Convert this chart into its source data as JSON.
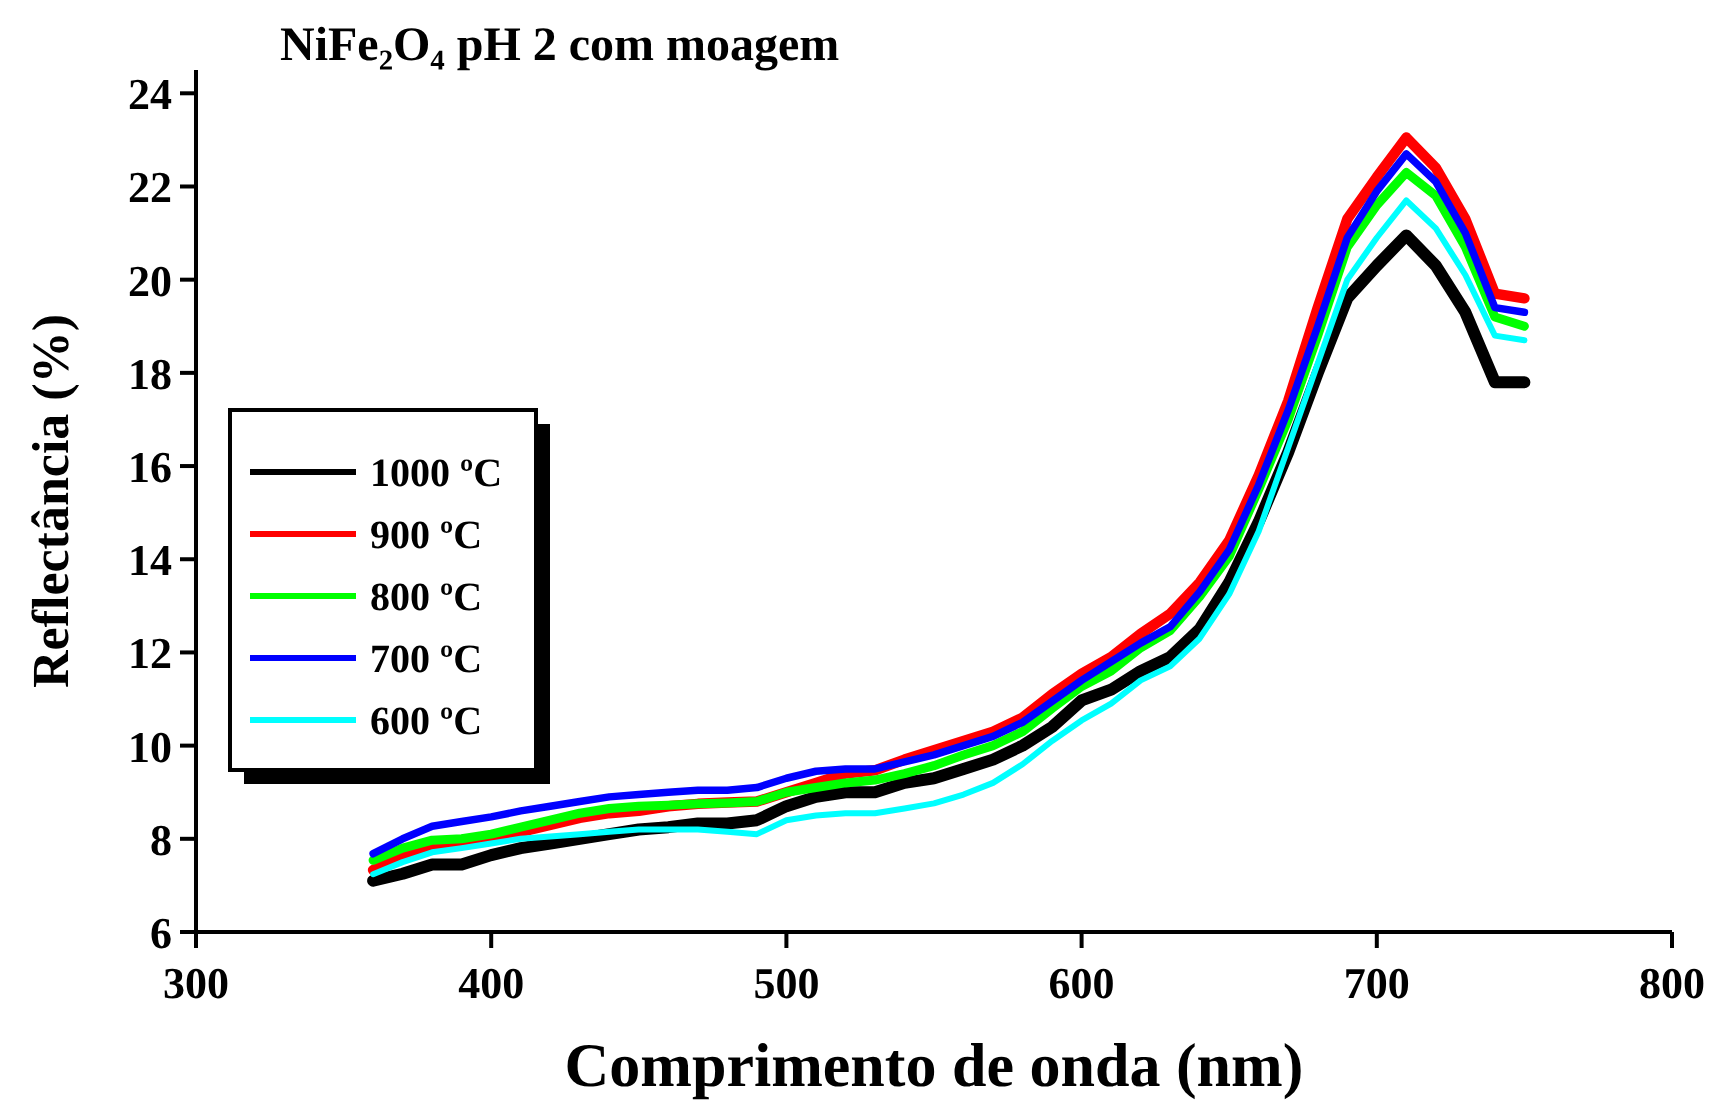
{
  "chart_data": {
    "type": "line",
    "title": "NiFe₂O₄ pH 2 com moagem",
    "xlabel": "Comprimento de onda (nm)",
    "ylabel": "Reflectância (%)",
    "x": [
      360,
      370,
      380,
      390,
      400,
      410,
      420,
      430,
      440,
      450,
      460,
      470,
      480,
      490,
      500,
      510,
      520,
      530,
      540,
      550,
      560,
      570,
      580,
      590,
      600,
      610,
      620,
      630,
      640,
      650,
      660,
      670,
      680,
      690,
      700,
      710,
      720,
      730,
      740,
      750
    ],
    "series": [
      {
        "name": "1000 ºC",
        "color": "#000000",
        "values": [
          7.1,
          7.25,
          7.45,
          7.45,
          7.65,
          7.8,
          7.9,
          8.0,
          8.1,
          8.2,
          8.25,
          8.33,
          8.33,
          8.4,
          8.7,
          8.9,
          9.0,
          9.0,
          9.2,
          9.3,
          9.5,
          9.7,
          10.0,
          10.4,
          10.97,
          11.2,
          11.6,
          11.9,
          12.5,
          13.5,
          14.8,
          16.3,
          18.0,
          19.6,
          20.3,
          20.95,
          20.3,
          19.3,
          17.8,
          17.8
        ]
      },
      {
        "name": "900 ºC",
        "color": "#ff0000",
        "values": [
          7.33,
          7.6,
          7.8,
          7.9,
          8.0,
          8.15,
          8.3,
          8.45,
          8.55,
          8.6,
          8.7,
          8.75,
          8.78,
          8.8,
          9.0,
          9.2,
          9.4,
          9.47,
          9.7,
          9.9,
          10.1,
          10.3,
          10.6,
          11.1,
          11.54,
          11.9,
          12.4,
          12.83,
          13.5,
          14.4,
          15.8,
          17.4,
          19.4,
          21.3,
          22.2,
          23.05,
          22.4,
          21.3,
          19.7,
          19.6
        ]
      },
      {
        "name": "800 ºC",
        "color": "#00ff00",
        "values": [
          7.54,
          7.8,
          7.97,
          8.0,
          8.1,
          8.25,
          8.4,
          8.55,
          8.65,
          8.7,
          8.72,
          8.75,
          8.77,
          8.8,
          9.0,
          9.1,
          9.2,
          9.26,
          9.4,
          9.57,
          9.8,
          10.0,
          10.3,
          10.8,
          11.27,
          11.6,
          12.1,
          12.47,
          13.2,
          14.06,
          15.5,
          17.0,
          18.8,
          20.7,
          21.6,
          22.3,
          21.8,
          20.7,
          19.2,
          19.0
        ]
      },
      {
        "name": "700 ºC",
        "color": "#0000ff",
        "values": [
          7.68,
          8.0,
          8.27,
          8.37,
          8.47,
          8.6,
          8.7,
          8.8,
          8.9,
          8.95,
          9.0,
          9.04,
          9.04,
          9.1,
          9.3,
          9.45,
          9.5,
          9.5,
          9.65,
          9.8,
          10.0,
          10.2,
          10.5,
          10.95,
          11.4,
          11.8,
          12.2,
          12.55,
          13.3,
          14.2,
          15.6,
          17.2,
          19.0,
          20.9,
          21.9,
          22.7,
          22.1,
          21.0,
          19.4,
          19.3
        ]
      },
      {
        "name": "600 ºC",
        "color": "#00ffff",
        "values": [
          7.24,
          7.5,
          7.71,
          7.8,
          7.9,
          8.0,
          8.05,
          8.1,
          8.15,
          8.2,
          8.2,
          8.2,
          8.15,
          8.1,
          8.4,
          8.5,
          8.55,
          8.55,
          8.65,
          8.76,
          8.95,
          9.2,
          9.6,
          10.1,
          10.54,
          10.9,
          11.4,
          11.7,
          12.3,
          13.25,
          14.6,
          16.4,
          18.2,
          20.0,
          20.9,
          21.7,
          21.1,
          20.1,
          18.8,
          18.7
        ]
      }
    ],
    "xlim": [
      300,
      800
    ],
    "xticks": [
      300,
      400,
      500,
      600,
      700,
      800
    ],
    "ylim": [
      6,
      24.5
    ],
    "yticks": [
      6,
      8,
      10,
      12,
      14,
      16,
      18,
      20,
      22,
      24
    ],
    "grid": false,
    "legend": "left",
    "marker": "none",
    "line_style": "solid"
  }
}
